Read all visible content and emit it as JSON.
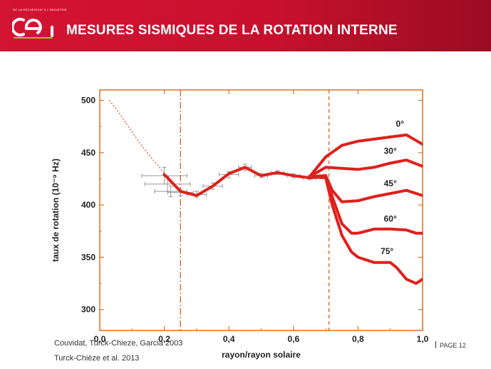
{
  "header": {
    "topline": "DE LA RECHERCHE À L'INDUSTRIE",
    "logo_text": "cea",
    "title": "MESURES SISMIQUES DE LA ROTATION INTERNE"
  },
  "chart_data": {
    "type": "line",
    "xlabel": "rayon/rayon solaire",
    "ylabel": "taux de rotation (10⁻⁹ Hz)",
    "xlim": [
      0,
      1
    ],
    "ylim": [
      280,
      510
    ],
    "xticks": [
      "0,0",
      "0,2",
      "0,4",
      "0,6",
      "0,8",
      "1,0"
    ],
    "xtick_values": [
      0,
      0.2,
      0.4,
      0.6,
      0.8,
      1.0
    ],
    "yticks": [
      "300",
      "350",
      "400",
      "450",
      "500"
    ],
    "ytick_values": [
      300,
      350,
      400,
      450,
      500
    ],
    "grid": false,
    "colors": {
      "frame": "#e07020",
      "curve": "#e0201c",
      "errorbar": "#999999",
      "dashdot": "#d06020",
      "text": "#222222"
    },
    "vlines": [
      {
        "x": 0.25,
        "style": "dashdot"
      },
      {
        "x": 0.71,
        "style": "dashed"
      }
    ],
    "extrapolation": {
      "style": "dotted",
      "x": [
        0.03,
        0.06,
        0.09,
        0.12,
        0.15,
        0.18,
        0.2
      ],
      "y": [
        500,
        488,
        474,
        461,
        449,
        438,
        430
      ]
    },
    "core_series": {
      "x": [
        0.2,
        0.21,
        0.25,
        0.3,
        0.35,
        0.4,
        0.45,
        0.5,
        0.55,
        0.6,
        0.65,
        0.7
      ],
      "y": [
        429,
        426,
        413,
        409,
        418,
        430,
        436,
        428,
        431,
        428,
        426,
        427
      ]
    },
    "error_bars": [
      {
        "x": 0.2,
        "y": 428,
        "xerr": 0.07,
        "yerr": 8
      },
      {
        "x": 0.21,
        "y": 420,
        "xerr": 0.07,
        "yerr": 7
      },
      {
        "x": 0.22,
        "y": 413,
        "xerr": 0.05,
        "yerr": 5
      },
      {
        "x": 0.25,
        "y": 412,
        "xerr": 0.04,
        "yerr": 3
      },
      {
        "x": 0.3,
        "y": 410,
        "xerr": 0.03,
        "yerr": 3
      },
      {
        "x": 0.35,
        "y": 418,
        "xerr": 0.03,
        "yerr": 3
      },
      {
        "x": 0.4,
        "y": 429,
        "xerr": 0.03,
        "yerr": 3
      },
      {
        "x": 0.45,
        "y": 436,
        "xerr": 0.02,
        "yerr": 3
      },
      {
        "x": 0.5,
        "y": 428,
        "xerr": 0.02,
        "yerr": 2
      },
      {
        "x": 0.55,
        "y": 431,
        "xerr": 0.02,
        "yerr": 2
      },
      {
        "x": 0.6,
        "y": 428,
        "xerr": 0.02,
        "yerr": 2
      },
      {
        "x": 0.65,
        "y": 426,
        "xerr": 0.02,
        "yerr": 2
      }
    ],
    "series": [
      {
        "name": "0°",
        "x": [
          0.65,
          0.7,
          0.75,
          0.8,
          0.85,
          0.9,
          0.95,
          1.0
        ],
        "y": [
          427,
          446,
          457,
          461,
          463,
          465,
          467,
          458
        ]
      },
      {
        "name": "30°",
        "x": [
          0.65,
          0.7,
          0.75,
          0.8,
          0.85,
          0.9,
          0.95,
          1.0
        ],
        "y": [
          427,
          436,
          435,
          434,
          436,
          440,
          443,
          437
        ]
      },
      {
        "name": "45°",
        "x": [
          0.65,
          0.7,
          0.72,
          0.75,
          0.8,
          0.85,
          0.9,
          0.95,
          1.0
        ],
        "y": [
          427,
          428,
          414,
          403,
          404,
          408,
          411,
          414,
          409
        ]
      },
      {
        "name": "60°",
        "x": [
          0.65,
          0.7,
          0.72,
          0.75,
          0.78,
          0.8,
          0.85,
          0.9,
          0.95,
          0.98,
          1.0
        ],
        "y": [
          427,
          428,
          408,
          382,
          373,
          373,
          377,
          377,
          376,
          373,
          373
        ]
      },
      {
        "name": "75°",
        "x": [
          0.65,
          0.7,
          0.72,
          0.75,
          0.78,
          0.8,
          0.85,
          0.9,
          0.92,
          0.95,
          0.98,
          1.0
        ],
        "y": [
          427,
          426,
          400,
          371,
          355,
          350,
          345,
          345,
          340,
          329,
          325,
          329
        ]
      }
    ],
    "series_label_positions": [
      {
        "x": 0.93,
        "y": 475
      },
      {
        "x": 0.9,
        "y": 449
      },
      {
        "x": 0.9,
        "y": 418
      },
      {
        "x": 0.9,
        "y": 384
      },
      {
        "x": 0.89,
        "y": 353
      }
    ]
  },
  "credits": {
    "line1": "Couvidat, Turck-Chieze, Garcia 2003",
    "line2": "Turck-Chièze et al. 2013"
  },
  "footer": {
    "page": "PAGE 12"
  }
}
